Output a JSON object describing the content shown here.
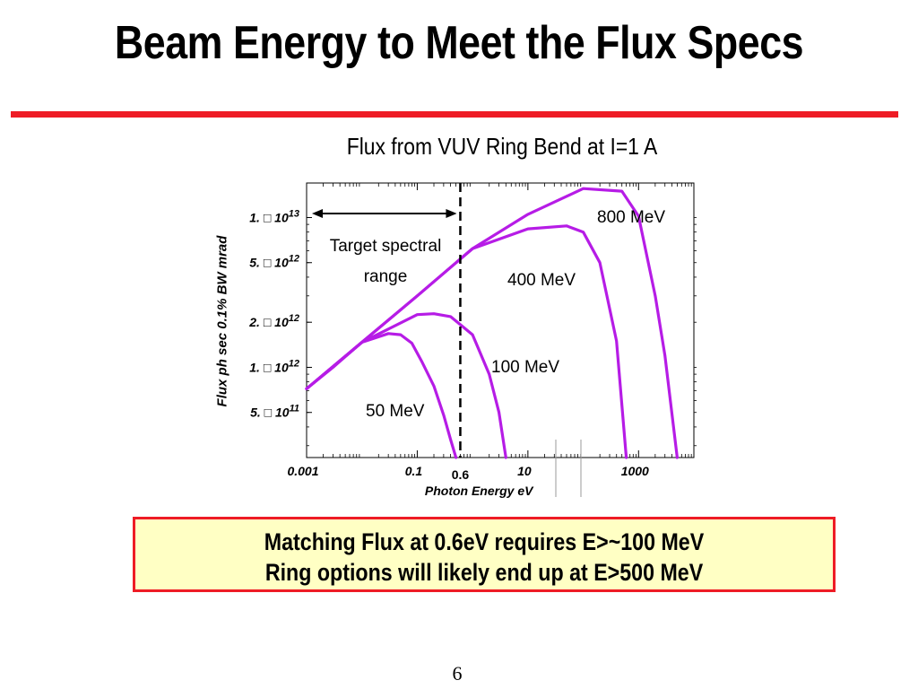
{
  "slide": {
    "title": "Beam Energy to Meet the Flux Specs",
    "page_number": "6",
    "accent_color": "#ee1c25"
  },
  "note_box": {
    "lines": [
      "Matching Flux at 0.6eV requires E>~100 MeV",
      "Ring options will likely end up at E>500 MeV"
    ],
    "background_color": "#ffffc4",
    "border_color": "#ee1c25"
  },
  "chart_data": {
    "type": "line",
    "title": "Flux from VUV Ring Bend at I=1 A",
    "xlabel": "Photon Energy   eV",
    "ylabel": "Flux   ph  sec 0.1% BW  mrad",
    "xscale": "log",
    "yscale": "log",
    "xlim": [
      0.001,
      10000
    ],
    "ylim": [
      250000000000,
      17000000000000
    ],
    "x_tick_labels": [
      "0.001",
      "0.1",
      "10",
      "1000"
    ],
    "x_tick_values": [
      0.001,
      0.1,
      10,
      1000
    ],
    "y_tick_labels": [
      {
        "mantissa": "1.",
        "exponent": "13",
        "value": 10000000000000
      },
      {
        "mantissa": "5.",
        "exponent": "12",
        "value": 5000000000000
      },
      {
        "mantissa": "2.",
        "exponent": "12",
        "value": 2000000000000
      },
      {
        "mantissa": "1.",
        "exponent": "12",
        "value": 1000000000000
      },
      {
        "mantissa": "5.",
        "exponent": "11",
        "value": 500000000000
      }
    ],
    "y_tick_base": "10",
    "y_tick_glyph": "□",
    "marked_x": {
      "label": "0.6",
      "value": 0.6
    },
    "target_range": {
      "label": "Target spectral range",
      "x_start": 0.001,
      "x_end": 0.6
    },
    "series_color": "#b61ce6",
    "series": [
      {
        "name": "50 MeV",
        "x": [
          0.001,
          0.003,
          0.01,
          0.03,
          0.05,
          0.08,
          0.12,
          0.2,
          0.3,
          0.4,
          0.5
        ],
        "y": [
          720000000000,
          1000000000000,
          1470000000000,
          1680000000000,
          1650000000000,
          1450000000000,
          1100000000000,
          750000000000,
          480000000000,
          330000000000,
          250000000000
        ]
      },
      {
        "name": "100 MeV",
        "x": [
          0.001,
          0.01,
          0.1,
          0.2,
          0.4,
          1,
          2,
          3,
          4
        ],
        "y": [
          720000000000,
          1470000000000,
          2250000000000,
          2280000000000,
          2180000000000,
          1650000000000,
          900000000000,
          500000000000,
          250000000000
        ]
      },
      {
        "name": "400 MeV",
        "x": [
          0.001,
          0.01,
          0.1,
          1,
          10,
          50,
          100,
          200,
          400,
          600
        ],
        "y": [
          720000000000,
          1470000000000,
          3000000000000,
          6200000000000,
          8400000000000,
          8800000000000,
          8000000000000,
          5000000000000,
          1500000000000,
          250000000000
        ]
      },
      {
        "name": "800 MeV",
        "x": [
          0.001,
          0.01,
          0.1,
          1,
          10,
          100,
          500,
          1000,
          2000,
          3000,
          5000
        ],
        "y": [
          720000000000,
          1470000000000,
          3000000000000,
          6200000000000,
          10500000000000,
          15600000000000,
          15000000000000,
          10200000000000,
          3000000000000,
          1200000000000,
          250000000000
        ]
      }
    ],
    "legend": "none",
    "grid": false
  }
}
